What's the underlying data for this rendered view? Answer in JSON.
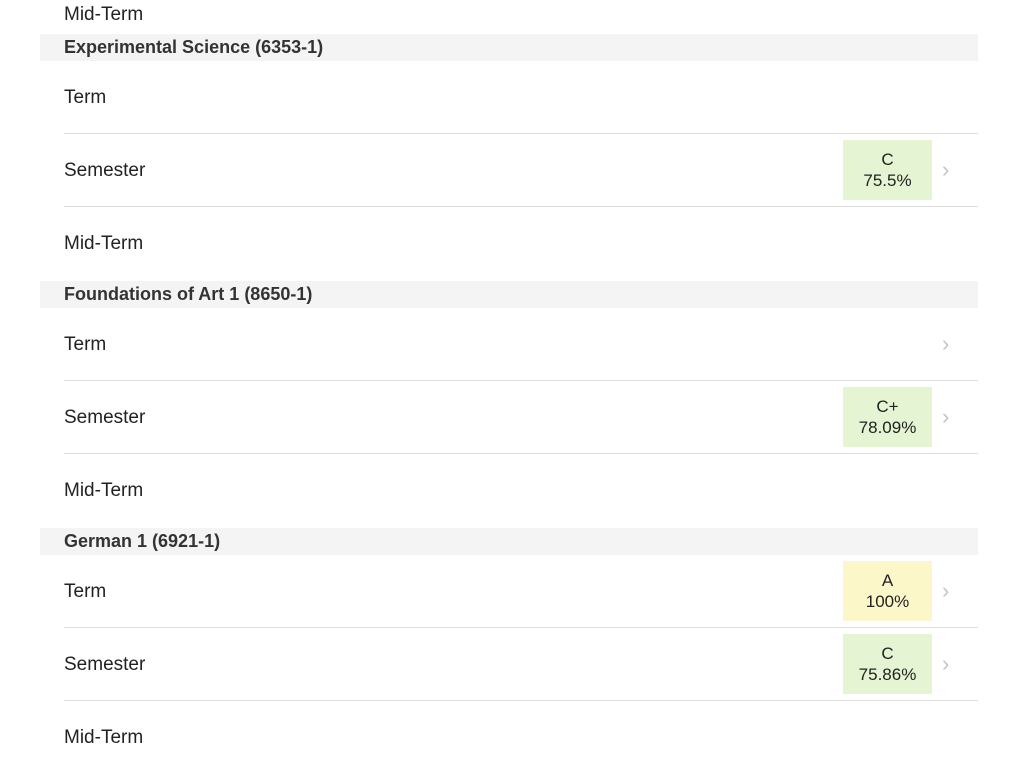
{
  "partial_row_label": "Mid-Term",
  "colors": {
    "grade_green": "#e5f4d2",
    "grade_yellow": "#fcf7c9",
    "header_bg": "#f4f4f4"
  },
  "sections": [
    {
      "title": "Experimental Science (6353-1)",
      "rows": [
        {
          "label": "Term",
          "letter": "",
          "percent": "",
          "chevron": false
        },
        {
          "label": "Semester",
          "letter": "C",
          "percent": "75.5%",
          "color": "green",
          "chevron": true
        },
        {
          "label": "Mid-Term",
          "letter": "",
          "percent": "",
          "chevron": false
        }
      ]
    },
    {
      "title": "Foundations of Art 1 (8650-1)",
      "rows": [
        {
          "label": "Term",
          "letter": "",
          "percent": "",
          "chevron": true
        },
        {
          "label": "Semester",
          "letter": "C+",
          "percent": "78.09%",
          "color": "green",
          "chevron": true
        },
        {
          "label": "Mid-Term",
          "letter": "",
          "percent": "",
          "chevron": false
        }
      ]
    },
    {
      "title": "German 1 (6921-1)",
      "rows": [
        {
          "label": "Term",
          "letter": "A",
          "percent": "100%",
          "color": "yellow",
          "chevron": true
        },
        {
          "label": "Semester",
          "letter": "C",
          "percent": "75.86%",
          "color": "green",
          "chevron": true
        },
        {
          "label": "Mid-Term",
          "letter": "",
          "percent": "",
          "chevron": false
        }
      ]
    }
  ]
}
